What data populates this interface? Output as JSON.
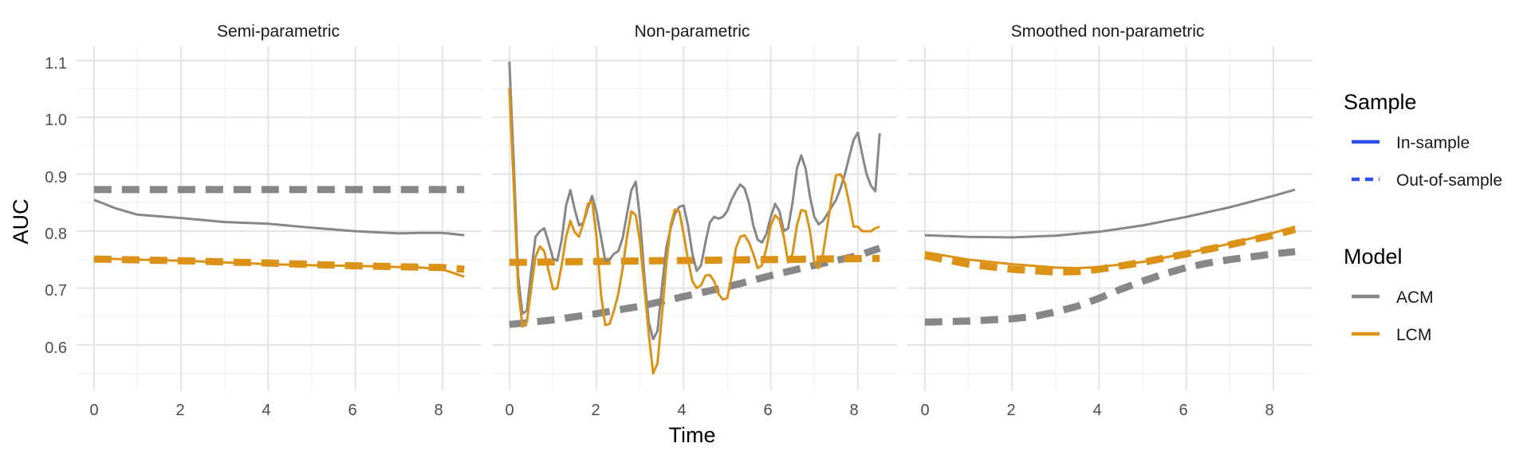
{
  "chart_data": {
    "type": "line",
    "ylabel": "AUC",
    "xlabel": "Time",
    "xlim": [
      -0.4,
      8.9
    ],
    "ylim": [
      0.52,
      1.125
    ],
    "xticks": [
      0,
      2,
      4,
      6,
      8
    ],
    "yticks": [
      0.6,
      0.7,
      0.8,
      0.9,
      1.0,
      1.1
    ],
    "ytick_labels": [
      "0.6",
      "0.7",
      "0.8",
      "0.9",
      "1.0",
      "1.1"
    ],
    "colors": {
      "ACM": "#878787",
      "LCM": "#DB9216",
      "legend_sample": "#2F4FEF"
    },
    "legend": {
      "position": "right",
      "sample_title": "Sample",
      "sample_items": [
        {
          "label": "In-sample",
          "dash": "solid"
        },
        {
          "label": "Out-of-sample",
          "dash": "dashed"
        }
      ],
      "model_title": "Model",
      "model_items": [
        {
          "label": "ACM",
          "color": "#878787"
        },
        {
          "label": "LCM",
          "color": "#DB9216"
        }
      ]
    },
    "facets": [
      {
        "title": "Semi-parametric",
        "series": [
          {
            "model": "ACM",
            "sample": "Out-of-sample",
            "x": [
              0,
              8.5
            ],
            "y": [
              0.873,
              0.873
            ]
          },
          {
            "model": "ACM",
            "sample": "In-sample",
            "x": [
              0,
              0.5,
              1,
              1.5,
              2,
              3,
              4,
              5,
              6,
              7,
              7.5,
              8,
              8.5
            ],
            "y": [
              0.855,
              0.84,
              0.829,
              0.826,
              0.823,
              0.816,
              0.813,
              0.806,
              0.8,
              0.796,
              0.797,
              0.797,
              0.793
            ]
          },
          {
            "model": "LCM",
            "sample": "Out-of-sample",
            "x": [
              0,
              2,
              4,
              6,
              8,
              8.5
            ],
            "y": [
              0.751,
              0.748,
              0.744,
              0.739,
              0.736,
              0.733
            ]
          },
          {
            "model": "LCM",
            "sample": "In-sample",
            "x": [
              0,
              1,
              2,
              3,
              4,
              5,
              6,
              7,
              7.5,
              8,
              8.5
            ],
            "y": [
              0.752,
              0.75,
              0.748,
              0.745,
              0.742,
              0.74,
              0.739,
              0.737,
              0.736,
              0.733,
              0.72
            ]
          }
        ]
      },
      {
        "title": "Non-parametric",
        "series": [
          {
            "model": "ACM",
            "sample": "Out-of-sample",
            "x": [
              0,
              1,
              2,
              3,
              4,
              5,
              6,
              7,
              8,
              8.5
            ],
            "y": [
              0.636,
              0.644,
              0.655,
              0.668,
              0.685,
              0.702,
              0.722,
              0.74,
              0.757,
              0.77
            ]
          },
          {
            "model": "LCM",
            "sample": "Out-of-sample",
            "x": [
              0,
              8.5
            ],
            "y": [
              0.745,
              0.752
            ]
          },
          {
            "model": "ACM",
            "sample": "In-sample",
            "x": [
              0,
              0.1,
              0.2,
              0.3,
              0.4,
              0.5,
              0.6,
              0.7,
              0.8,
              0.9,
              1.0,
              1.1,
              1.2,
              1.3,
              1.4,
              1.5,
              1.6,
              1.7,
              1.8,
              1.9,
              2.0,
              2.1,
              2.2,
              2.3,
              2.4,
              2.5,
              2.6,
              2.7,
              2.8,
              2.9,
              3.0,
              3.1,
              3.2,
              3.3,
              3.4,
              3.5,
              3.6,
              3.7,
              3.8,
              3.9,
              4.0,
              4.1,
              4.2,
              4.3,
              4.4,
              4.5,
              4.6,
              4.7,
              4.8,
              4.9,
              5.0,
              5.1,
              5.2,
              5.3,
              5.4,
              5.5,
              5.6,
              5.7,
              5.8,
              5.9,
              6.0,
              6.1,
              6.2,
              6.3,
              6.4,
              6.5,
              6.6,
              6.7,
              6.8,
              6.9,
              7.0,
              7.1,
              7.2,
              7.3,
              7.4,
              7.5,
              7.6,
              7.7,
              7.8,
              7.9,
              8.0,
              8.1,
              8.2,
              8.3,
              8.4,
              8.5
            ],
            "y": [
              1.098,
              0.92,
              0.72,
              0.655,
              0.66,
              0.73,
              0.79,
              0.8,
              0.805,
              0.78,
              0.752,
              0.748,
              0.785,
              0.845,
              0.872,
              0.838,
              0.81,
              0.815,
              0.84,
              0.862,
              0.833,
              0.79,
              0.748,
              0.75,
              0.76,
              0.765,
              0.788,
              0.83,
              0.872,
              0.887,
              0.82,
              0.72,
              0.64,
              0.61,
              0.625,
              0.7,
              0.77,
              0.805,
              0.83,
              0.843,
              0.845,
              0.81,
              0.76,
              0.73,
              0.74,
              0.78,
              0.815,
              0.825,
              0.822,
              0.825,
              0.835,
              0.855,
              0.87,
              0.882,
              0.875,
              0.85,
              0.81,
              0.785,
              0.78,
              0.795,
              0.825,
              0.848,
              0.835,
              0.8,
              0.805,
              0.85,
              0.91,
              0.933,
              0.91,
              0.86,
              0.825,
              0.812,
              0.818,
              0.83,
              0.843,
              0.855,
              0.875,
              0.9,
              0.93,
              0.96,
              0.973,
              0.935,
              0.9,
              0.88,
              0.87,
              0.972
            ]
          },
          {
            "model": "LCM",
            "sample": "In-sample",
            "x": [
              0,
              0.1,
              0.2,
              0.3,
              0.4,
              0.5,
              0.6,
              0.7,
              0.8,
              0.9,
              1.0,
              1.1,
              1.2,
              1.3,
              1.4,
              1.5,
              1.6,
              1.7,
              1.8,
              1.9,
              2.0,
              2.1,
              2.2,
              2.3,
              2.4,
              2.5,
              2.6,
              2.7,
              2.8,
              2.9,
              3.0,
              3.1,
              3.2,
              3.3,
              3.4,
              3.5,
              3.6,
              3.7,
              3.8,
              3.9,
              4.0,
              4.1,
              4.2,
              4.3,
              4.4,
              4.5,
              4.6,
              4.7,
              4.8,
              4.9,
              5.0,
              5.1,
              5.2,
              5.3,
              5.4,
              5.5,
              5.6,
              5.7,
              5.8,
              5.9,
              6.0,
              6.1,
              6.2,
              6.3,
              6.4,
              6.5,
              6.6,
              6.7,
              6.8,
              6.9,
              7.0,
              7.1,
              7.2,
              7.3,
              7.4,
              7.5,
              7.6,
              7.7,
              7.8,
              7.9,
              8.0,
              8.1,
              8.2,
              8.3,
              8.4,
              8.5
            ],
            "y": [
              1.052,
              0.88,
              0.7,
              0.632,
              0.64,
              0.7,
              0.755,
              0.773,
              0.765,
              0.73,
              0.698,
              0.7,
              0.74,
              0.79,
              0.818,
              0.798,
              0.79,
              0.815,
              0.848,
              0.852,
              0.79,
              0.69,
              0.635,
              0.637,
              0.66,
              0.69,
              0.735,
              0.79,
              0.835,
              0.828,
              0.78,
              0.7,
              0.62,
              0.55,
              0.568,
              0.65,
              0.74,
              0.81,
              0.838,
              0.835,
              0.795,
              0.75,
              0.712,
              0.7,
              0.705,
              0.722,
              0.723,
              0.712,
              0.69,
              0.68,
              0.682,
              0.72,
              0.77,
              0.79,
              0.793,
              0.78,
              0.76,
              0.735,
              0.74,
              0.77,
              0.81,
              0.828,
              0.82,
              0.79,
              0.745,
              0.76,
              0.81,
              0.837,
              0.835,
              0.8,
              0.745,
              0.735,
              0.76,
              0.81,
              0.86,
              0.898,
              0.9,
              0.885,
              0.85,
              0.808,
              0.808,
              0.8,
              0.8,
              0.8,
              0.805,
              0.808
            ]
          }
        ]
      },
      {
        "title": "Smoothed non-parametric",
        "series": [
          {
            "model": "ACM",
            "sample": "Out-of-sample",
            "x": [
              0,
              1,
              2,
              2.5,
              3,
              3.5,
              4,
              4.5,
              5,
              5.5,
              6,
              6.5,
              7,
              7.5,
              8,
              8.5
            ],
            "y": [
              0.64,
              0.642,
              0.646,
              0.65,
              0.658,
              0.668,
              0.682,
              0.698,
              0.712,
              0.725,
              0.736,
              0.744,
              0.75,
              0.755,
              0.76,
              0.764
            ]
          },
          {
            "model": "ACM",
            "sample": "In-sample",
            "x": [
              0,
              1,
              2,
              3,
              4,
              5,
              6,
              7,
              8,
              8.5
            ],
            "y": [
              0.793,
              0.79,
              0.789,
              0.792,
              0.799,
              0.81,
              0.825,
              0.842,
              0.862,
              0.873
            ]
          },
          {
            "model": "LCM",
            "sample": "Out-of-sample",
            "x": [
              0,
              1,
              2,
              3,
              3.5,
              4,
              5,
              6,
              7,
              8,
              8.5
            ],
            "y": [
              0.757,
              0.742,
              0.733,
              0.728,
              0.729,
              0.733,
              0.745,
              0.76,
              0.776,
              0.793,
              0.803
            ]
          },
          {
            "model": "LCM",
            "sample": "In-sample",
            "x": [
              0,
              1,
              2,
              3,
              3.5,
              4,
              5,
              6,
              7,
              8,
              8.5
            ],
            "y": [
              0.763,
              0.75,
              0.742,
              0.736,
              0.735,
              0.737,
              0.746,
              0.761,
              0.778,
              0.797,
              0.808
            ]
          }
        ]
      }
    ]
  }
}
